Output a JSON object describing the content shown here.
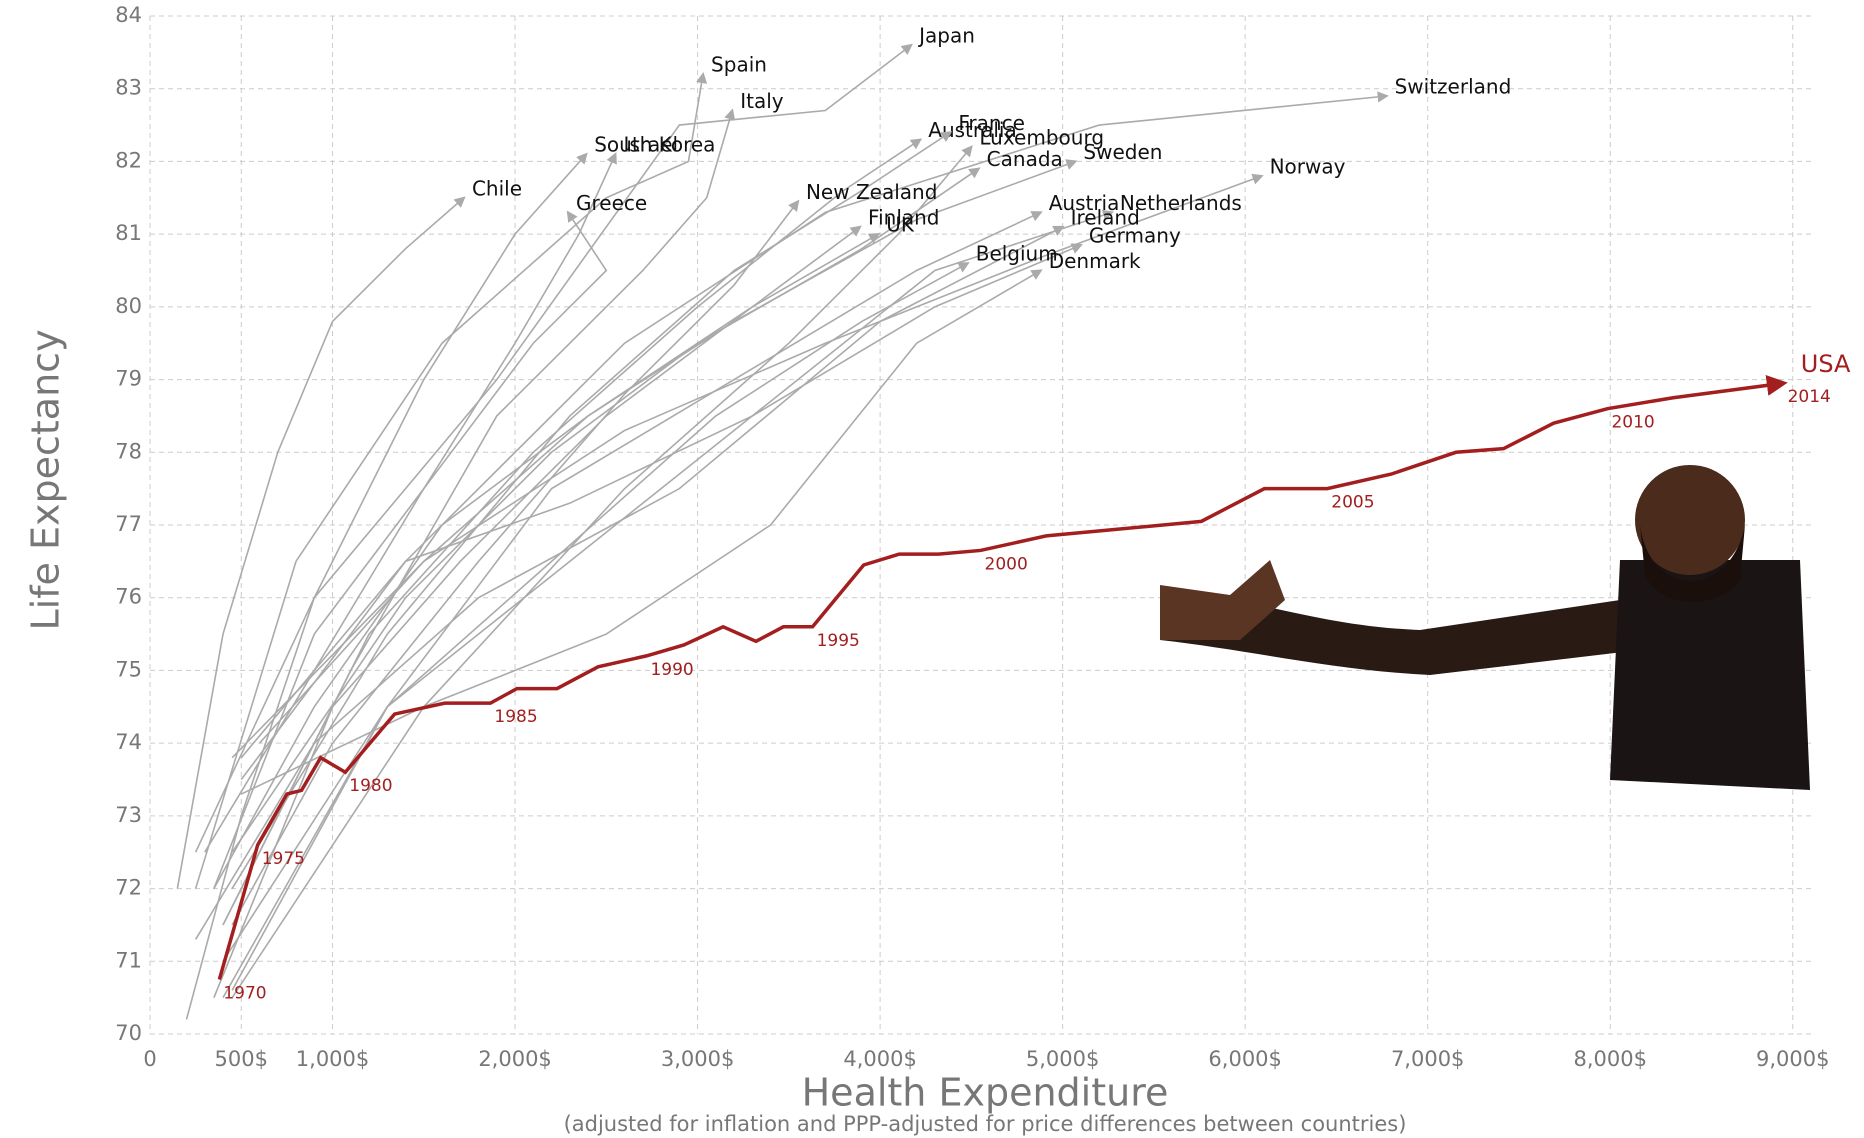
{
  "chart_data": {
    "type": "line",
    "y_label": "Life Expectancy",
    "x_label": "Health Expenditure",
    "x_sublabel": "(adjusted for inflation and PPP-adjusted for price differences between countries)",
    "xlim": [
      0,
      9100
    ],
    "ylim": [
      70,
      84
    ],
    "xticks": [
      0,
      {
        "value": 500,
        "label": "500$"
      },
      {
        "value": 1000,
        "label": "1,000$"
      },
      {
        "value": 2000,
        "label": "2,000$"
      },
      {
        "value": 3000,
        "label": "3,000$"
      },
      {
        "value": 4000,
        "label": "4,000$"
      },
      {
        "value": 5000,
        "label": "5,000$"
      },
      {
        "value": 6000,
        "label": "6,000$"
      },
      {
        "value": 7000,
        "label": "7,000$"
      },
      {
        "value": 8000,
        "label": "8,000$"
      },
      {
        "value": 9000,
        "label": "9,000$"
      }
    ],
    "yticks": [
      70,
      71,
      72,
      73,
      74,
      75,
      76,
      77,
      78,
      79,
      80,
      81,
      82,
      83,
      84
    ],
    "grid": true,
    "series": [
      {
        "name": "Japan",
        "color": "#aaaaaa",
        "x": [
          250,
          900,
          1900,
          2900,
          3700,
          4170
        ],
        "values": [
          72.5,
          76,
          79,
          82.5,
          82.7,
          83.6
        ]
      },
      {
        "name": "Spain",
        "color": "#aaaaaa",
        "x": [
          250,
          800,
          1600,
          2500,
          2950,
          3030
        ],
        "values": [
          72,
          76.5,
          79.5,
          81.5,
          82,
          83.2
        ]
      },
      {
        "name": "Italy",
        "color": "#aaaaaa",
        "x": [
          400,
          1100,
          1900,
          2700,
          3050,
          3190
        ],
        "values": [
          71.5,
          75,
          78.5,
          80.5,
          81.5,
          82.7
        ]
      },
      {
        "name": "Switzerland",
        "color": "#aaaaaa",
        "x": [
          500,
          1400,
          2600,
          3700,
          5200,
          6775
        ],
        "values": [
          73.5,
          76.5,
          79.5,
          81.3,
          82.5,
          82.9
        ]
      },
      {
        "name": "Australia",
        "color": "#aaaaaa",
        "x": [
          400,
          1200,
          2100,
          3000,
          3800,
          4220
        ],
        "values": [
          71.5,
          75.5,
          78,
          80,
          81.6,
          82.3
        ]
      },
      {
        "name": "France",
        "color": "#aaaaaa",
        "x": [
          450,
          1300,
          2300,
          3200,
          3900,
          4385
        ],
        "values": [
          72,
          75.5,
          78.5,
          80.5,
          81.6,
          82.4
        ]
      },
      {
        "name": "Luxembourg",
        "color": "#aaaaaa",
        "x": [
          450,
          1500,
          2600,
          3500,
          4100,
          4500
        ],
        "values": [
          70.5,
          74.5,
          77.5,
          79.5,
          81,
          82.2
        ]
      },
      {
        "name": "South Korea",
        "color": "#aaaaaa",
        "x": [
          200,
          500,
          900,
          1500,
          2000,
          2390
        ],
        "values": [
          70.2,
          73,
          76,
          79,
          81,
          82.1
        ]
      },
      {
        "name": "Israel",
        "color": "#aaaaaa",
        "x": [
          350,
          900,
          1500,
          2000,
          2350,
          2550
        ],
        "values": [
          72,
          75.5,
          77.5,
          79.5,
          81,
          82.1
        ]
      },
      {
        "name": "Canada",
        "color": "#aaaaaa",
        "x": [
          450,
          1400,
          2200,
          3000,
          3900,
          4540
        ],
        "values": [
          72.5,
          76,
          78,
          79.5,
          80.8,
          81.9
        ]
      },
      {
        "name": "Sweden",
        "color": "#aaaaaa",
        "x": [
          600,
          1500,
          2400,
          3200,
          4200,
          5070
        ],
        "values": [
          74,
          76.5,
          78.5,
          79.8,
          81.2,
          82.0
        ]
      },
      {
        "name": "Norway",
        "color": "#aaaaaa",
        "x": [
          450,
          1500,
          2600,
          3700,
          4900,
          6090
        ],
        "values": [
          73.8,
          76.5,
          78.3,
          79.5,
          80.7,
          81.8
        ]
      },
      {
        "name": "Chile",
        "color": "#aaaaaa",
        "x": [
          150,
          400,
          700,
          1000,
          1400,
          1720
        ],
        "values": [
          72,
          75.5,
          78,
          79.8,
          80.8,
          81.5
        ]
      },
      {
        "name": "Greece",
        "color": "#aaaaaa",
        "x": [
          300,
          900,
          1500,
          2100,
          2500,
          2290
        ],
        "values": [
          72.5,
          75,
          77.5,
          79.5,
          80.5,
          81.3
        ]
      },
      {
        "name": "New Zealand",
        "color": "#aaaaaa",
        "x": [
          450,
          1000,
          1800,
          2600,
          3200,
          3550
        ],
        "values": [
          71.5,
          74,
          76.5,
          78.8,
          80.3,
          81.45
        ]
      },
      {
        "name": "Finland",
        "color": "#aaaaaa",
        "x": [
          350,
          1000,
          1700,
          2500,
          3300,
          3890
        ],
        "values": [
          70.5,
          74.5,
          76.5,
          78.5,
          80,
          81.1
        ]
      },
      {
        "name": "UK",
        "color": "#aaaaaa",
        "x": [
          350,
          900,
          1600,
          2400,
          3300,
          3990
        ],
        "values": [
          72,
          74.5,
          77,
          78.5,
          80,
          81.0
        ]
      },
      {
        "name": "Austria",
        "color": "#aaaaaa",
        "x": [
          400,
          1300,
          2200,
          3200,
          4200,
          4880
        ],
        "values": [
          70.5,
          74.5,
          77.5,
          79,
          80.5,
          81.3
        ]
      },
      {
        "name": "Netherlands",
        "color": "#aaaaaa",
        "x": [
          500,
          1400,
          2300,
          3300,
          4300,
          5270
        ],
        "values": [
          73.8,
          76.5,
          77.3,
          78.5,
          80.5,
          81.3
        ]
      },
      {
        "name": "Ireland",
        "color": "#aaaaaa",
        "x": [
          250,
          900,
          1800,
          2900,
          4000,
          5000
        ],
        "values": [
          71.3,
          74,
          76,
          77.5,
          79.8,
          81.1
        ]
      },
      {
        "name": "Germany",
        "color": "#aaaaaa",
        "x": [
          450,
          1300,
          2300,
          3300,
          4300,
          5100
        ],
        "values": [
          70.6,
          74.5,
          76.5,
          78.5,
          80,
          80.85
        ]
      },
      {
        "name": "Belgium",
        "color": "#aaaaaa",
        "x": [
          400,
          1300,
          2200,
          3100,
          3900,
          4480
        ],
        "values": [
          71,
          74.5,
          76.5,
          78.5,
          79.8,
          80.6
        ]
      },
      {
        "name": "Denmark",
        "color": "#aaaaaa",
        "x": [
          500,
          1500,
          2500,
          3400,
          4200,
          4880
        ],
        "values": [
          73.3,
          74.5,
          75.5,
          77,
          79.5,
          80.5
        ]
      },
      {
        "name": "USA",
        "color": "#a31f1f",
        "x": [
          380,
          590,
          750,
          830,
          935,
          1070,
          1340,
          1615,
          1865,
          2010,
          2230,
          2455,
          2720,
          2925,
          3140,
          3320,
          3470,
          3630,
          3910,
          4105,
          4320,
          4550,
          4910,
          5760,
          6105,
          6450,
          6800,
          7155,
          7415,
          7690,
          7985,
          8345,
          8950
        ],
        "values": [
          70.75,
          72.6,
          73.3,
          73.35,
          73.8,
          73.6,
          74.4,
          74.55,
          74.55,
          74.75,
          74.75,
          75.05,
          75.2,
          75.35,
          75.6,
          75.4,
          75.6,
          75.6,
          76.45,
          76.6,
          76.6,
          76.65,
          76.85,
          77.05,
          77.5,
          77.5,
          77.7,
          78.0,
          78.05,
          78.4,
          78.6,
          78.75,
          78.95
        ],
        "labels": [
          "1970",
          "1975",
          null,
          null,
          null,
          "1980",
          null,
          null,
          "1985",
          null,
          null,
          null,
          "1990",
          null,
          null,
          null,
          null,
          "1995",
          null,
          null,
          null,
          "2000",
          null,
          null,
          null,
          "2005",
          null,
          null,
          null,
          null,
          "2010",
          null,
          "2014"
        ]
      }
    ]
  }
}
